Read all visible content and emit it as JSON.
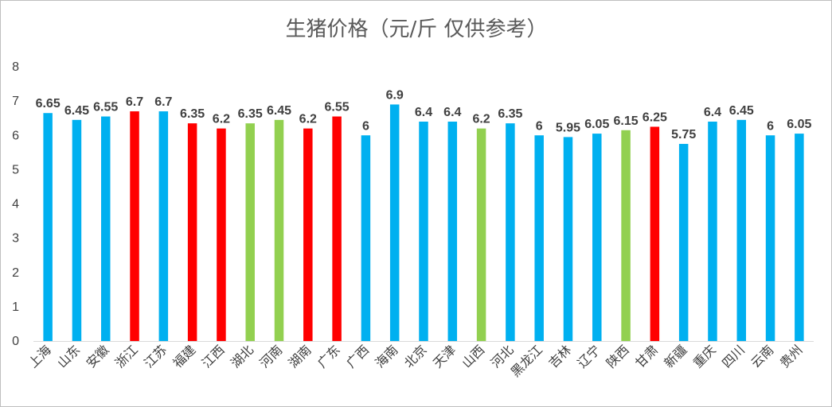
{
  "chart_data": {
    "type": "bar",
    "title": "生猪价格（元/斤 仅供参考）",
    "xlabel": "",
    "ylabel": "",
    "ylim": [
      0,
      8
    ],
    "yticks": [
      "0",
      "1",
      "2",
      "3",
      "4",
      "5",
      "6",
      "7",
      "8"
    ],
    "grid": false,
    "legend": "none",
    "categories": [
      "上海",
      "山东",
      "安徽",
      "浙江",
      "江苏",
      "福建",
      "江西",
      "湖北",
      "河南",
      "湖南",
      "广东",
      "广西",
      "海南",
      "北京",
      "天津",
      "山西",
      "河北",
      "黑龙江",
      "吉林",
      "辽宁",
      "陕西",
      "甘肃",
      "新疆",
      "重庆",
      "四川",
      "云南",
      "贵州"
    ],
    "values": [
      6.65,
      6.45,
      6.55,
      6.7,
      6.7,
      6.35,
      6.2,
      6.35,
      6.45,
      6.2,
      6.55,
      6,
      6.9,
      6.4,
      6.4,
      6.2,
      6.35,
      6,
      5.95,
      6.05,
      6.15,
      6.25,
      5.75,
      6.4,
      6.45,
      6,
      6.05
    ],
    "labels": [
      "6.65",
      "6.45",
      "6.55",
      "6.7",
      "6.7",
      "6.35",
      "6.2",
      "6.35",
      "6.45",
      "6.2",
      "6.55",
      "6",
      "6.9",
      "6.4",
      "6.4",
      "6.2",
      "6.35",
      "6",
      "5.95",
      "6.05",
      "6.15",
      "6.25",
      "5.75",
      "6.4",
      "6.45",
      "6",
      "6.05"
    ],
    "colors": [
      "#00b0f0",
      "#00b0f0",
      "#00b0f0",
      "#ff0000",
      "#00b0f0",
      "#ff0000",
      "#ff0000",
      "#92d050",
      "#92d050",
      "#ff0000",
      "#ff0000",
      "#00b0f0",
      "#00b0f0",
      "#00b0f0",
      "#00b0f0",
      "#92d050",
      "#00b0f0",
      "#00b0f0",
      "#00b0f0",
      "#00b0f0",
      "#92d050",
      "#ff0000",
      "#00b0f0",
      "#00b0f0",
      "#00b0f0",
      "#00b0f0",
      "#00b0f0"
    ],
    "axis_color": "#d9d9d9"
  }
}
